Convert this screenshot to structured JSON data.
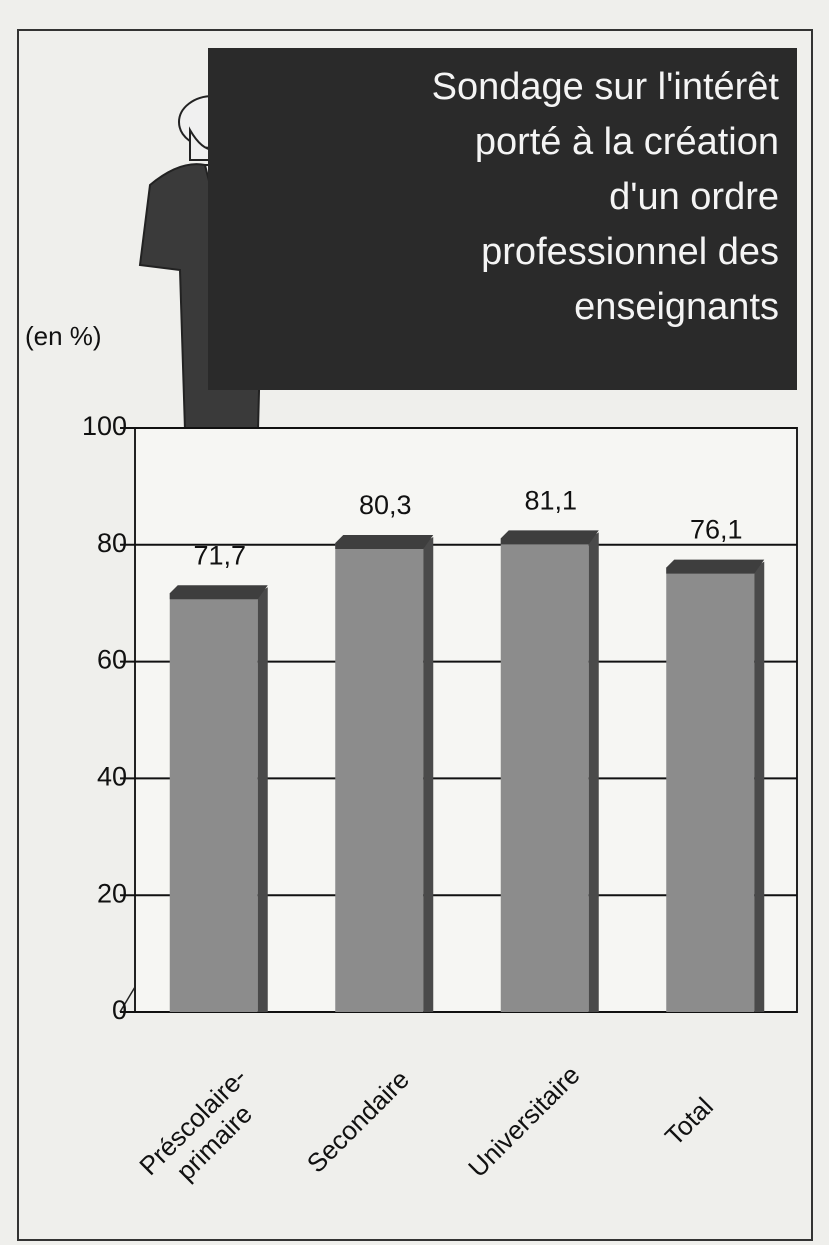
{
  "chart_data": {
    "type": "bar",
    "title": "Sondage sur l'intérêt\nporté à la création\nd'un ordre\nprofessionnel des\nenseignants",
    "y_label": "(en %)",
    "categories": [
      "Préscolaire-\nprimaire",
      "Secondaire",
      "Universitaire",
      "Total"
    ],
    "values": [
      71.7,
      80.3,
      81.1,
      76.1
    ],
    "value_labels": [
      "71,7",
      "80,3",
      "81,1",
      "76,1"
    ],
    "color": "#8c8c8c",
    "ylim": [
      0,
      100
    ],
    "yticks": [
      0,
      20,
      40,
      60,
      80,
      100
    ],
    "grid": true
  }
}
